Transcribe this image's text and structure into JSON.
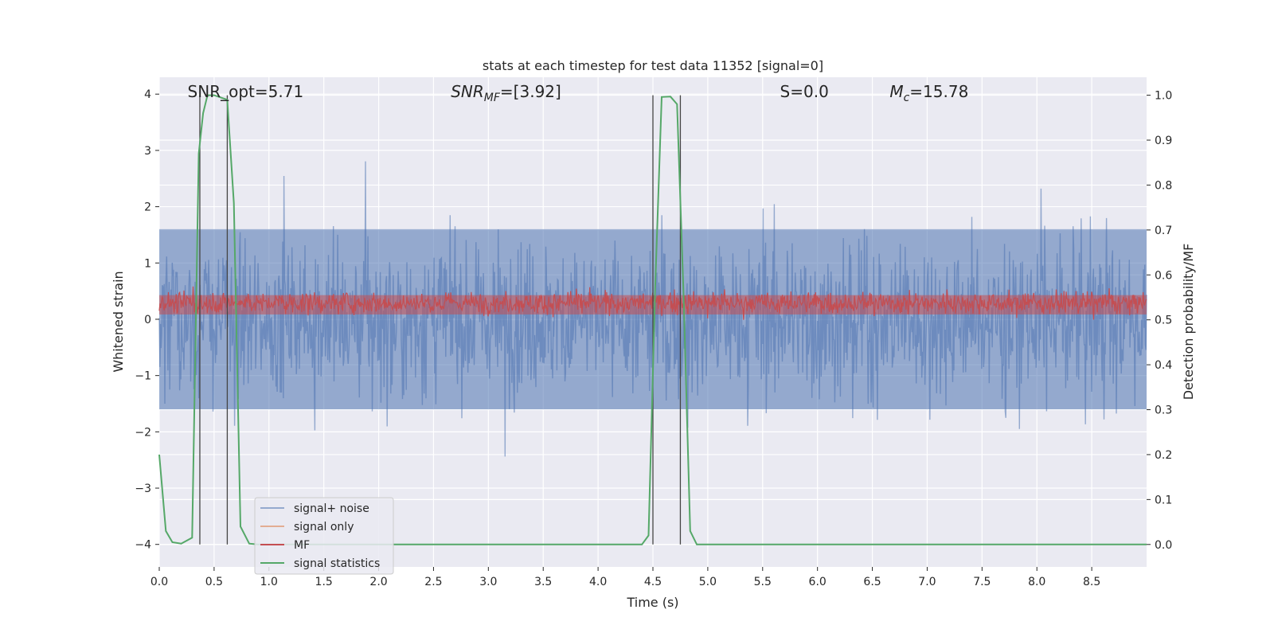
{
  "chart_data": {
    "type": "line",
    "title": "stats at each timestep for test data 11352 [signal=0]",
    "xlabel": "Time (s)",
    "ylabel": "Whitened strain",
    "y2label": "Detection probability/MF",
    "xlim": [
      0.0,
      9.0
    ],
    "ylim": [
      -4.4,
      4.3
    ],
    "y2lim": [
      -0.05,
      1.04
    ],
    "x_ticks": [
      "0.0",
      "0.5",
      "1.0",
      "1.5",
      "2.0",
      "2.5",
      "3.0",
      "3.5",
      "4.0",
      "4.5",
      "5.0",
      "5.5",
      "6.0",
      "6.5",
      "7.0",
      "7.5",
      "8.0",
      "8.5"
    ],
    "y_ticks": [
      "4",
      "3",
      "2",
      "1",
      "0",
      "−1",
      "−2",
      "−3",
      "−4"
    ],
    "y2_ticks": [
      "1.0",
      "0.9",
      "0.8",
      "0.7",
      "0.6",
      "0.5",
      "0.4",
      "0.3",
      "0.2",
      "0.1",
      "0.0"
    ],
    "grid": true,
    "legend_placement": "lower-left",
    "annotations": [
      {
        "text": "SNR_opt=5.71",
        "x": 0.2
      },
      {
        "text": "SNR_MF=[3.92]",
        "x": 2.6
      },
      {
        "text": "S=0.0",
        "x": 5.6
      },
      {
        "text": "M_c=15.78",
        "x": 6.6
      }
    ],
    "series": [
      {
        "name": "signal+ noise",
        "color": "#4c72b0",
        "description_range": [
          -4.0,
          4.0
        ],
        "band_core": [
          -1.6,
          1.6
        ]
      },
      {
        "name": "signal only",
        "color": "#dd8452",
        "values": []
      },
      {
        "name": "MF",
        "color": "#c44e52",
        "axis": "right",
        "range": [
          0.5,
          0.58
        ]
      },
      {
        "name": "signal statistics",
        "color": "#55a868",
        "axis": "right",
        "x": [
          0.0,
          0.06,
          0.12,
          0.2,
          0.3,
          0.36,
          0.4,
          0.44,
          0.5,
          0.56,
          0.62,
          0.68,
          0.74,
          0.82,
          0.9,
          1.0,
          4.4,
          4.46,
          4.52,
          4.58,
          4.66,
          4.72,
          4.78,
          4.84,
          4.9,
          9.0
        ],
        "values": [
          0.2,
          0.03,
          0.005,
          0.002,
          0.015,
          0.87,
          0.96,
          1.0,
          1.0,
          0.995,
          0.99,
          0.76,
          0.04,
          0.002,
          0.0,
          0.0,
          0.0,
          0.02,
          0.57,
          0.996,
          0.997,
          0.98,
          0.55,
          0.03,
          0.0,
          0.0
        ]
      }
    ],
    "vlines_x": [
      0.37,
      0.62,
      4.5,
      4.75
    ]
  }
}
